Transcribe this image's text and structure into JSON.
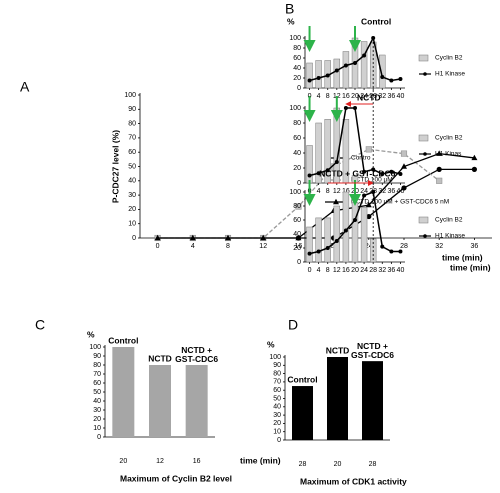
{
  "chart_data": [
    {
      "type": "line",
      "label": "A",
      "ylabel": "P-CDC27 level (%)",
      "xlabel": "time (min)",
      "xlim": [
        -2,
        38
      ],
      "xticks": [
        0,
        4,
        8,
        12,
        16,
        20,
        24,
        28,
        32,
        36
      ],
      "ylim": [
        0,
        100
      ],
      "yticks": [
        0,
        10,
        20,
        30,
        40,
        50,
        60,
        70,
        80,
        90,
        100
      ],
      "series": [
        {
          "name": "Contro",
          "color": "#000000",
          "marker": "circle",
          "dash": false,
          "x": [
            0,
            4,
            8,
            12,
            16,
            20,
            24,
            28,
            32,
            36
          ],
          "values": [
            0,
            0,
            0,
            0,
            0,
            0,
            15,
            35,
            48,
            48
          ]
        },
        {
          "name": "NCTD 100 µM",
          "color": "#999999",
          "marker": "square",
          "dash": true,
          "x": [
            0,
            4,
            8,
            12,
            16,
            20,
            24,
            28,
            32
          ],
          "values": [
            0,
            0,
            0,
            0,
            22,
            50,
            62,
            59,
            40
          ]
        },
        {
          "name": "NCTD 100 µM + GST-CDC6 5 nM",
          "color": "#000000",
          "marker": "triangle",
          "dash": false,
          "x": [
            0,
            4,
            8,
            12,
            16,
            20,
            24,
            28,
            32,
            36
          ],
          "values": [
            0,
            0,
            0,
            0,
            0,
            19,
            23,
            50,
            59,
            56
          ]
        }
      ]
    },
    {
      "type": "combo",
      "label": "B",
      "ylabel": "%",
      "annotation": "Control",
      "xlim": [
        -2,
        42
      ],
      "xticks": [
        0,
        4,
        8,
        12,
        16,
        20,
        24,
        28,
        32,
        36,
        40
      ],
      "ylim": [
        0,
        100
      ],
      "yticks": [
        0,
        20,
        40,
        60,
        80,
        100
      ],
      "series": [
        {
          "name": "Cyclin B2",
          "kind": "bar",
          "color": "#d0d0d0",
          "x": [
            0,
            4,
            8,
            12,
            16,
            20,
            24,
            28,
            32
          ],
          "values": [
            50,
            55,
            55,
            58,
            73,
            100,
            93,
            92,
            66
          ]
        },
        {
          "name": "H1 Kinase",
          "kind": "line",
          "color": "#000000",
          "x": [
            0,
            4,
            8,
            12,
            16,
            20,
            24,
            28,
            32,
            36,
            40
          ],
          "values": [
            15,
            20,
            25,
            35,
            45,
            50,
            65,
            100,
            22,
            15,
            18
          ]
        }
      ]
    },
    {
      "type": "combo",
      "annotation": "NCTD",
      "xlim": [
        -2,
        42
      ],
      "xticks": [
        0,
        4,
        8,
        12,
        16,
        20,
        24,
        28,
        32,
        36,
        40
      ],
      "ylim": [
        0,
        100
      ],
      "yticks": [
        0,
        20,
        40,
        60,
        80,
        100
      ],
      "series": [
        {
          "name": "Cyclin B2",
          "kind": "bar",
          "color": "#d0d0d0",
          "x": [
            0,
            4,
            8,
            12,
            16,
            20
          ],
          "values": [
            50,
            80,
            85,
            100,
            85,
            10
          ]
        },
        {
          "name": "H1 Kinas",
          "kind": "line",
          "color": "#000000",
          "x": [
            0,
            4,
            8,
            12,
            16,
            20,
            24,
            28,
            32,
            36,
            40
          ],
          "values": [
            10,
            13,
            17,
            28,
            100,
            100,
            15,
            18,
            12,
            15,
            12
          ]
        }
      ]
    },
    {
      "type": "combo",
      "annotation": "NCTD + GST-CDC6",
      "xlabel": "time (min)",
      "xlim": [
        -2,
        42
      ],
      "xticks": [
        0,
        4,
        8,
        12,
        16,
        20,
        24,
        28,
        32,
        36,
        40
      ],
      "ylim": [
        0,
        100
      ],
      "yticks": [
        0,
        20,
        40,
        60,
        80,
        100
      ],
      "series": [
        {
          "name": "Cyclin B2",
          "kind": "bar",
          "color": "#d0d0d0",
          "x": [
            0,
            4,
            8,
            12,
            16,
            20,
            24,
            28
          ],
          "values": [
            50,
            63,
            63,
            80,
            100,
            85,
            78,
            33
          ]
        },
        {
          "name": "H1 Kinase",
          "kind": "line",
          "color": "#000000",
          "x": [
            0,
            4,
            8,
            12,
            16,
            20,
            24,
            28,
            32,
            36,
            40
          ],
          "values": [
            12,
            15,
            20,
            30,
            45,
            60,
            95,
            100,
            22,
            15,
            15
          ]
        }
      ]
    },
    {
      "type": "bar",
      "label": "C",
      "ylabel": "%",
      "xlabel": "time (min)",
      "caption": "Maximum of Cyclin B2 level",
      "color": "#a6a6a6",
      "categories": [
        "20",
        "12",
        "16"
      ],
      "bar_labels": [
        "Control",
        "NCTD",
        "NCTD + GST-CDC6"
      ],
      "values": [
        100,
        80,
        80
      ],
      "ylim": [
        0,
        100
      ],
      "yticks": [
        0,
        10,
        20,
        30,
        40,
        50,
        60,
        70,
        80,
        90,
        100
      ]
    },
    {
      "type": "bar",
      "label": "D",
      "ylabel": "%",
      "caption": "Maximum of CDK1 activity",
      "color": "#000000",
      "categories": [
        "28",
        "20",
        "28"
      ],
      "bar_labels": [
        "Control",
        "NCTD",
        "NCTD + GST-CDC6"
      ],
      "values": [
        65,
        100,
        95
      ],
      "ylim": [
        0,
        100
      ],
      "yticks": [
        0,
        10,
        20,
        30,
        40,
        50,
        60,
        70,
        80,
        90,
        100
      ]
    }
  ]
}
